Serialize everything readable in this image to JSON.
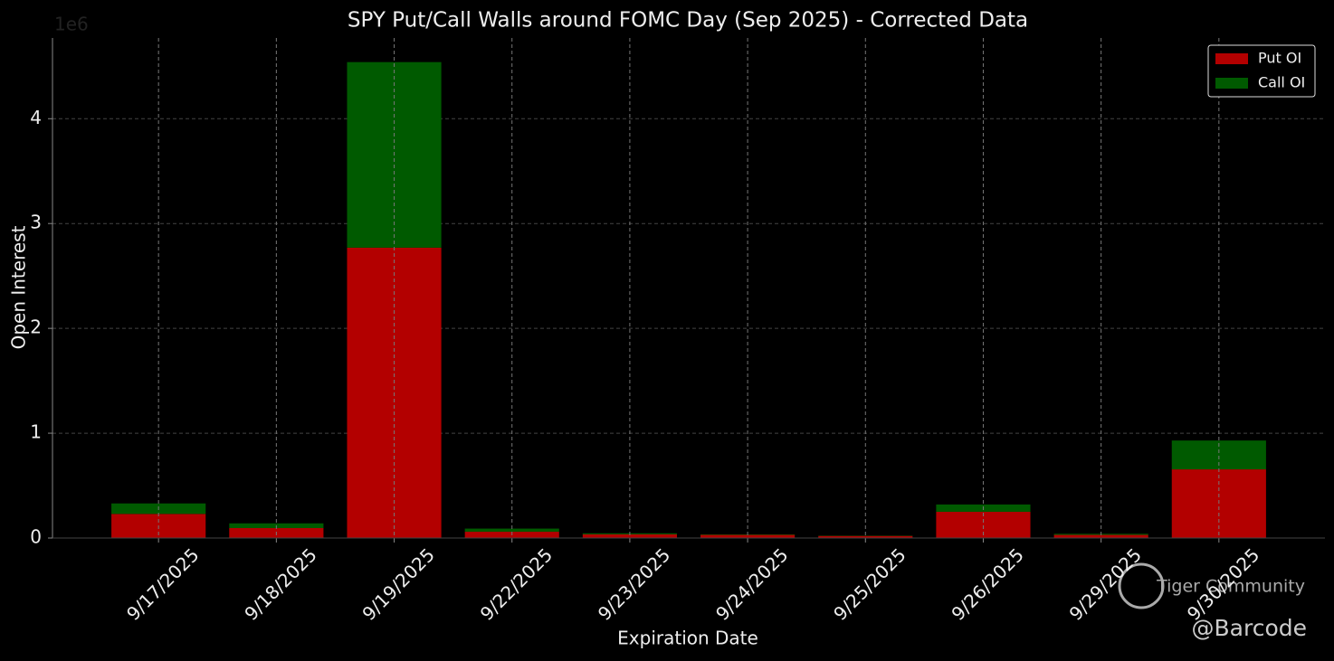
{
  "chart_data": {
    "type": "stacked_bar",
    "title": "SPY Put/Call Walls around FOMC Day (Sep 2025) - Corrected Data",
    "x_label": "Expiration Date",
    "y_label": "Open Interest",
    "y_offset_label": "1e6",
    "categories": [
      "9/17/2025",
      "9/18/2025",
      "9/19/2025",
      "9/22/2025",
      "9/23/2025",
      "9/24/2025",
      "9/25/2025",
      "9/26/2025",
      "9/29/2025",
      "9/30/2025"
    ],
    "series": [
      {
        "name": "Put OI",
        "color": "#b30000",
        "values": [
          0.23,
          0.095,
          2.77,
          0.06,
          0.035,
          0.03,
          0.02,
          0.25,
          0.03,
          0.655
        ]
      },
      {
        "name": "Call OI",
        "color": "#005a00",
        "values": [
          0.1,
          0.045,
          1.77,
          0.03,
          0.01,
          0.005,
          0.003,
          0.07,
          0.01,
          0.275
        ]
      }
    ],
    "ylim": [
      0,
      4.77
    ],
    "yticks": [
      0,
      1,
      2,
      3,
      4
    ],
    "grid": true,
    "legend": "upper right",
    "annotations": [
      "Tiger Community",
      "@Barcode"
    ]
  }
}
